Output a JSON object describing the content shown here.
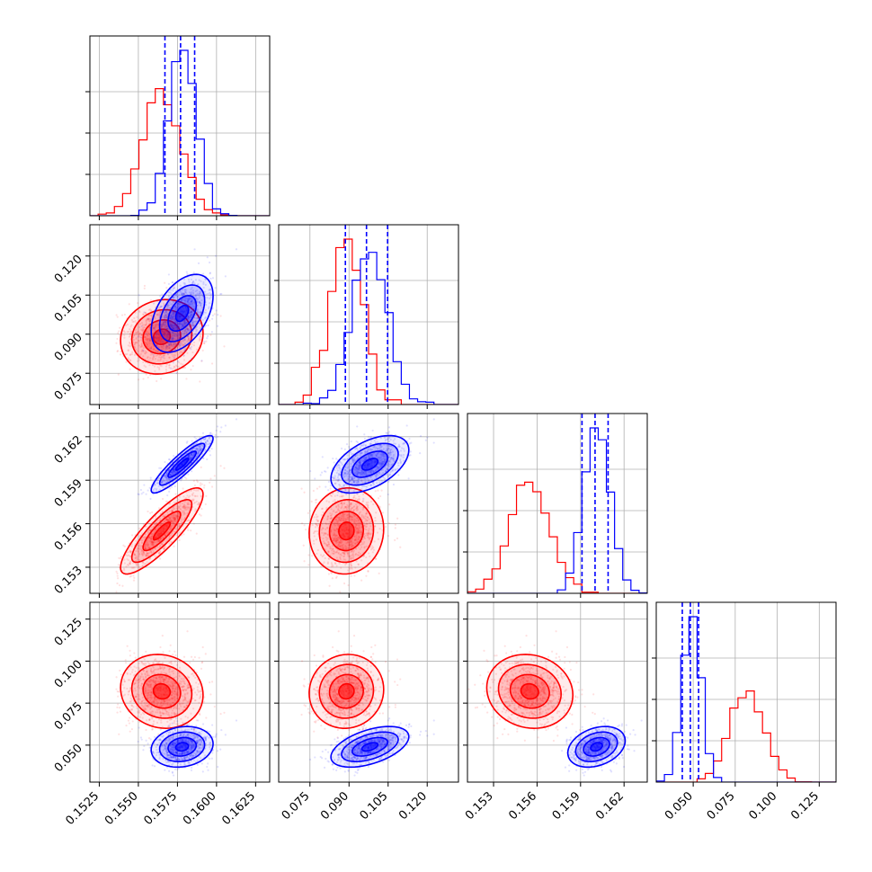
{
  "chart_data": {
    "type": "scatter",
    "title": "",
    "layout": "corner-plot",
    "n_parameters": 4,
    "grid": true,
    "legend": "none",
    "parameters": [
      {
        "label": "",
        "range": [
          0.1519,
          0.1634
        ],
        "ticks": [
          "0.1525",
          "0.1550",
          "0.1575",
          "0.1600",
          "0.1625"
        ],
        "tick_values": [
          0.1525,
          0.155,
          0.1575,
          0.16,
          0.1625
        ]
      },
      {
        "label": "",
        "range": [
          0.063,
          0.132
        ],
        "ticks": [
          "0.075",
          "0.090",
          "0.105",
          "0.120"
        ],
        "tick_values": [
          0.075,
          0.09,
          0.105,
          0.12
        ]
      },
      {
        "label": "",
        "range": [
          0.1512,
          0.1636
        ],
        "ticks": [
          "0.153",
          "0.156",
          "0.159",
          "0.162"
        ],
        "tick_values": [
          0.153,
          0.156,
          0.159,
          0.162
        ]
      },
      {
        "label": "",
        "range": [
          0.028,
          0.135
        ],
        "ticks": [
          "0.050",
          "0.075",
          "0.100",
          "0.125"
        ],
        "tick_values": [
          0.05,
          0.075,
          0.1,
          0.125
        ]
      }
    ],
    "series": [
      {
        "color": "#ff0000",
        "mean": [
          0.1565,
          0.089,
          0.1555,
          0.082
        ],
        "sd": [
          0.0012,
          0.0065,
          0.00135,
          0.01
        ],
        "corr": [
          [
            1,
            0.1,
            0.85,
            -0.1
          ],
          [
            0.1,
            1,
            0.05,
            0.05
          ],
          [
            0.85,
            0.05,
            1,
            -0.1
          ],
          [
            -0.1,
            0.05,
            -0.1,
            1
          ]
        ],
        "quantile_lines": false
      },
      {
        "color": "#0000ff",
        "mean": [
          0.1578,
          0.098,
          0.1601,
          0.049
        ],
        "sd": [
          0.0009,
          0.0068,
          0.0009,
          0.0055
        ],
        "corr": [
          [
            1,
            0.45,
            0.9,
            0.15
          ],
          [
            0.45,
            1,
            0.5,
            0.5
          ],
          [
            0.9,
            0.5,
            1,
            0.3
          ],
          [
            0.15,
            0.5,
            0.3,
            1
          ]
        ],
        "quantile_lines": true,
        "quantiles": [
          [
            0.1567,
            0.1577,
            0.1586
          ],
          [
            0.0886,
            0.0967,
            0.1048
          ],
          [
            0.1591,
            0.16,
            0.1609
          ],
          [
            0.0435,
            0.0483,
            0.0532
          ]
        ]
      }
    ]
  }
}
